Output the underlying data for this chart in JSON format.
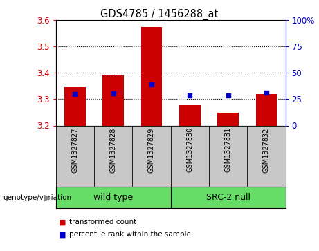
{
  "title": "GDS4785 / 1456288_at",
  "samples": [
    "GSM1327827",
    "GSM1327828",
    "GSM1327829",
    "GSM1327830",
    "GSM1327831",
    "GSM1327832"
  ],
  "red_values": [
    3.345,
    3.39,
    3.575,
    3.278,
    3.248,
    3.32
  ],
  "blue_values": [
    3.32,
    3.323,
    3.355,
    3.315,
    3.315,
    3.325
  ],
  "ylim_left": [
    3.2,
    3.6
  ],
  "ylim_right": [
    0,
    100
  ],
  "yticks_left": [
    3.2,
    3.3,
    3.4,
    3.5,
    3.6
  ],
  "yticks_right": [
    0,
    25,
    50,
    75,
    100
  ],
  "ytick_labels_right": [
    "0",
    "25",
    "50",
    "75",
    "100%"
  ],
  "bar_bottom": 3.2,
  "bar_color_red": "#cc0000",
  "bar_color_blue": "#0000cc",
  "bg_color_label": "#c8c8c8",
  "left_tick_color": "#cc0000",
  "right_tick_color": "#0000cc",
  "legend_red_label": "transformed count",
  "legend_blue_label": "percentile rank within the sample",
  "genotype_label": "genotype/variation",
  "group_label_wild": "wild type",
  "group_label_src": "SRC-2 null",
  "group_bg_color": "#66dd66",
  "grid_yticks": [
    3.3,
    3.4,
    3.5
  ],
  "bar_width": 0.55
}
